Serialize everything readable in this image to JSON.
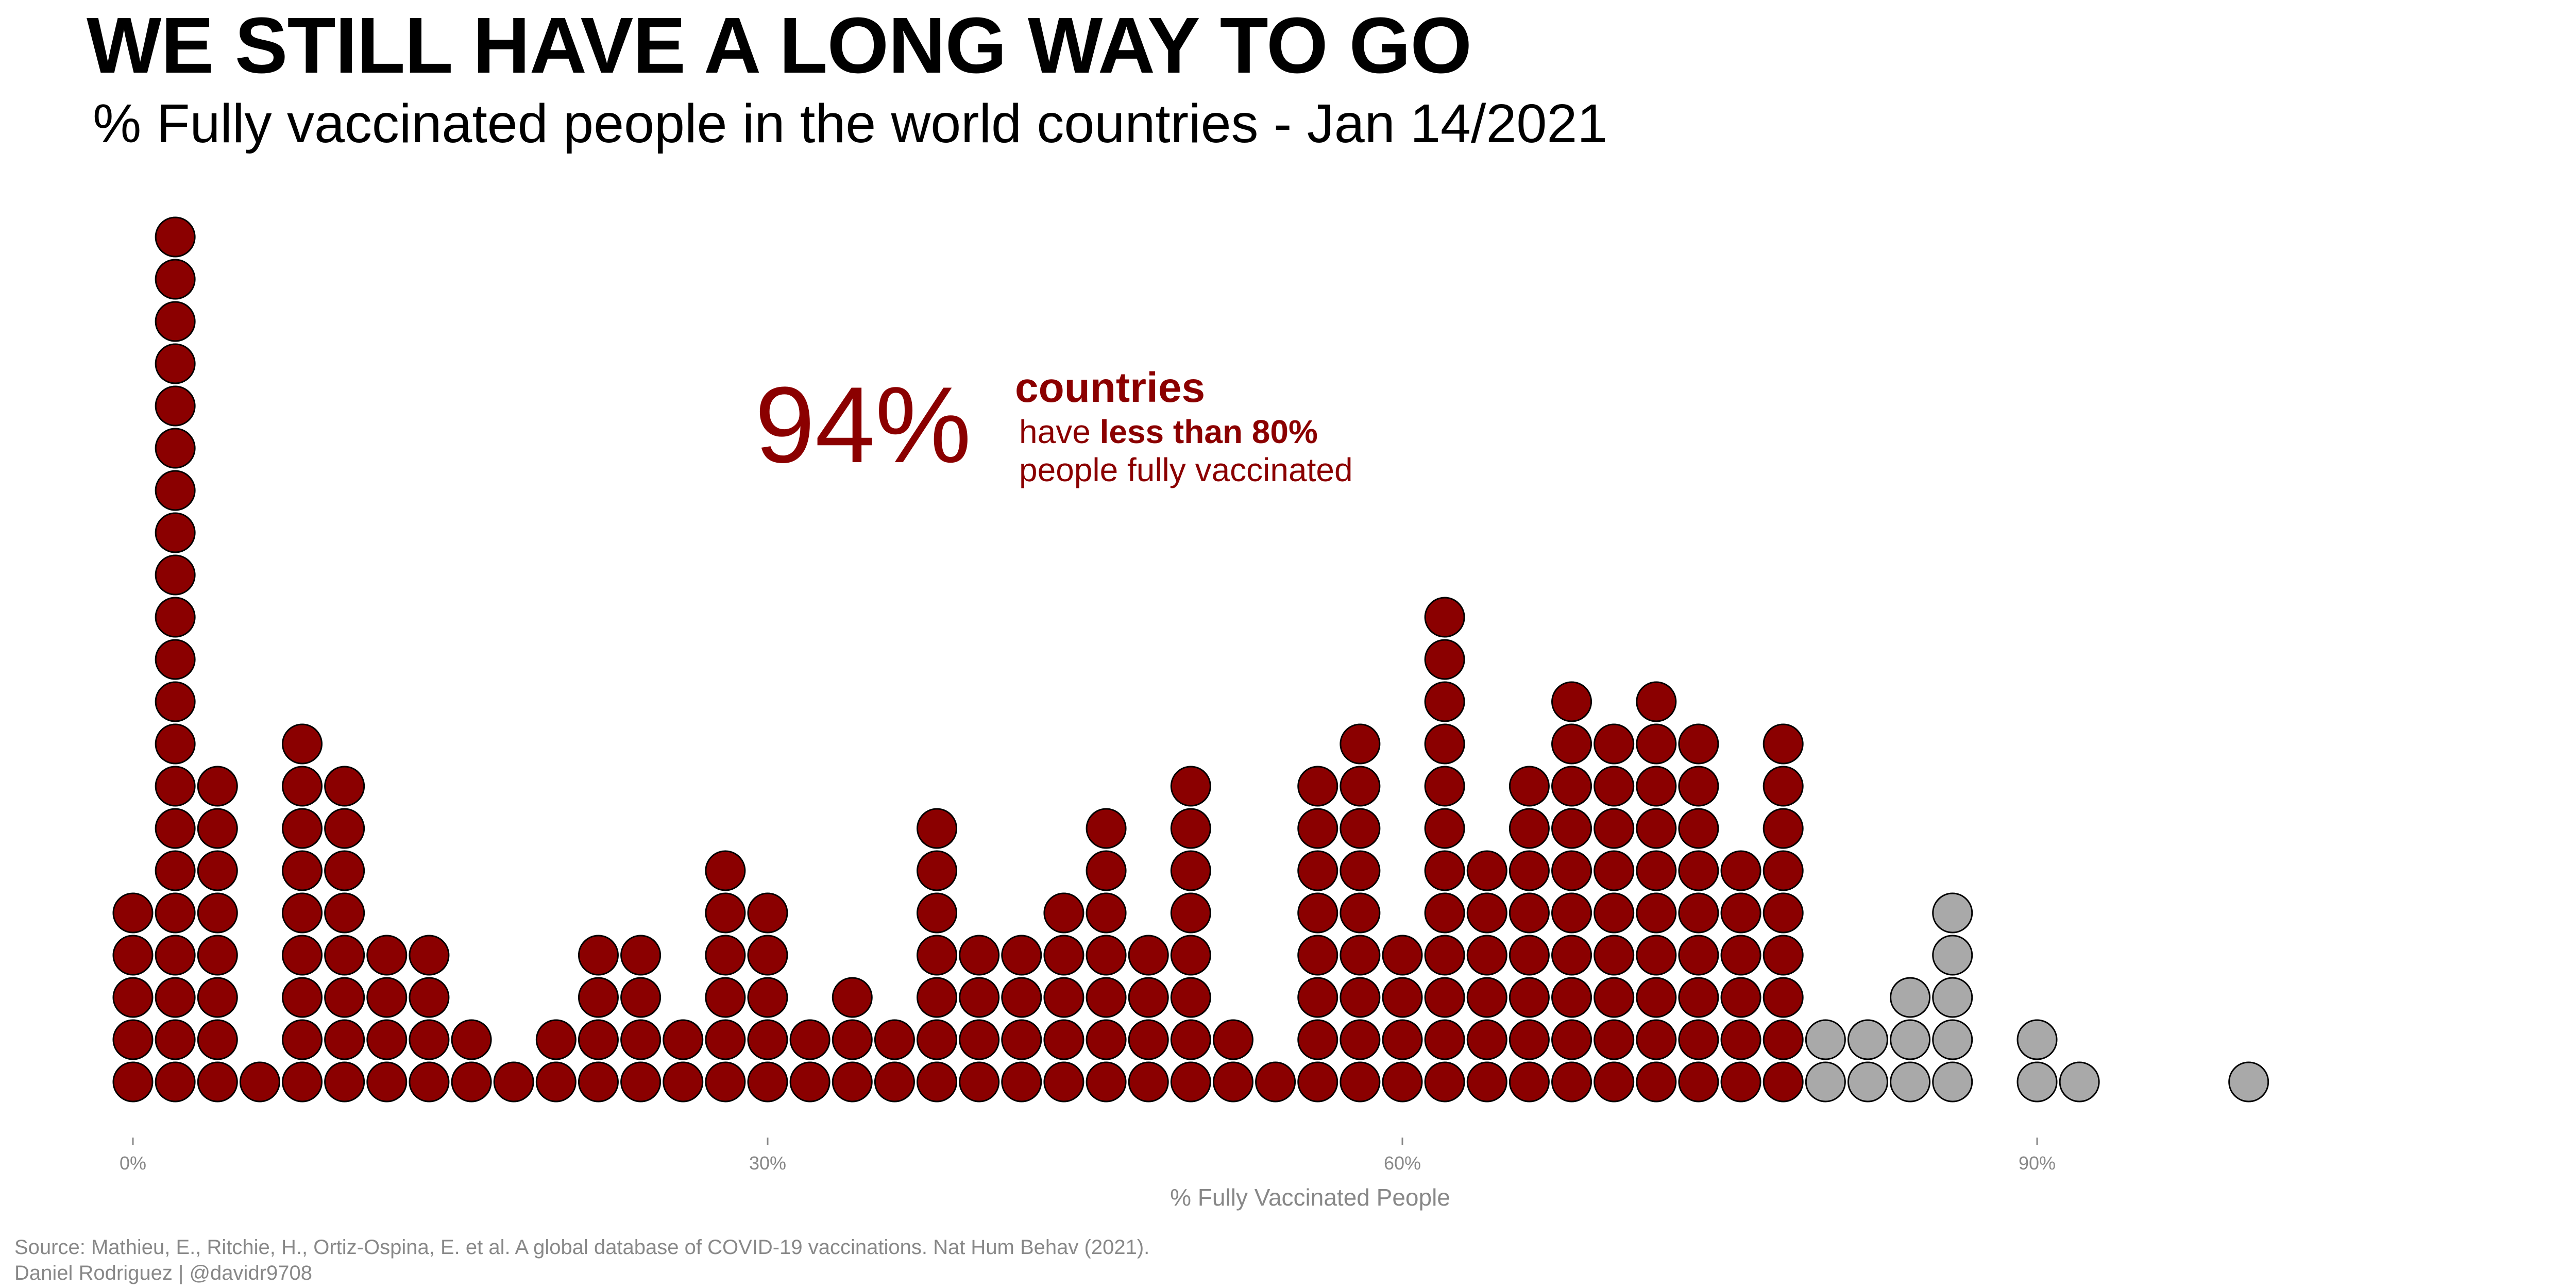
{
  "header": {
    "title": "WE STILL HAVE A LONG WAY TO GO",
    "subtitle": "% Fully vaccinated people in the world countries - Jan 14/2021"
  },
  "callout": {
    "big": "94%",
    "head": "countries",
    "line2_pre": "have ",
    "line2_bold": "less than 80%",
    "line3": " people fully vaccinated"
  },
  "footer": {
    "source": "Source: Mathieu, E., Ritchie, H., Ortiz-Ospina, E. et al. A global database of COVID-19 vaccinations. Nat Hum Behav (2021).",
    "credit": "Daniel Rodriguez | @davidr9708"
  },
  "colors": {
    "below_threshold": "#8B0000",
    "above_threshold": "#A9A9A9",
    "outline": "#000000",
    "axis_text": "#888888"
  },
  "chart_data": {
    "type": "dotplot",
    "xlabel": "% Fully Vaccinated People",
    "ylabel": "",
    "xlim": [
      0,
      100
    ],
    "x_ticks": [
      0,
      30,
      60,
      90
    ],
    "x_tick_labels": [
      "0%",
      "30%",
      "60%",
      "90%"
    ],
    "grid": false,
    "threshold": 80,
    "dot_unit": "country",
    "bins": [
      {
        "x": 0,
        "count": 5
      },
      {
        "x": 2,
        "count": 21
      },
      {
        "x": 4,
        "count": 8
      },
      {
        "x": 6,
        "count": 1
      },
      {
        "x": 8,
        "count": 9
      },
      {
        "x": 10,
        "count": 8
      },
      {
        "x": 12,
        "count": 4
      },
      {
        "x": 14,
        "count": 4
      },
      {
        "x": 16,
        "count": 2
      },
      {
        "x": 18,
        "count": 1
      },
      {
        "x": 20,
        "count": 2
      },
      {
        "x": 22,
        "count": 4
      },
      {
        "x": 24,
        "count": 4
      },
      {
        "x": 26,
        "count": 2
      },
      {
        "x": 28,
        "count": 6
      },
      {
        "x": 30,
        "count": 5
      },
      {
        "x": 32,
        "count": 2
      },
      {
        "x": 34,
        "count": 3
      },
      {
        "x": 36,
        "count": 2
      },
      {
        "x": 38,
        "count": 7
      },
      {
        "x": 40,
        "count": 4
      },
      {
        "x": 42,
        "count": 4
      },
      {
        "x": 44,
        "count": 5
      },
      {
        "x": 46,
        "count": 7
      },
      {
        "x": 48,
        "count": 4
      },
      {
        "x": 50,
        "count": 8
      },
      {
        "x": 52,
        "count": 2
      },
      {
        "x": 54,
        "count": 1
      },
      {
        "x": 56,
        "count": 8
      },
      {
        "x": 58,
        "count": 9
      },
      {
        "x": 60,
        "count": 4
      },
      {
        "x": 62,
        "count": 12
      },
      {
        "x": 64,
        "count": 6
      },
      {
        "x": 66,
        "count": 8
      },
      {
        "x": 68,
        "count": 10
      },
      {
        "x": 70,
        "count": 9
      },
      {
        "x": 72,
        "count": 10
      },
      {
        "x": 74,
        "count": 9
      },
      {
        "x": 76,
        "count": 6
      },
      {
        "x": 78,
        "count": 9
      },
      {
        "x": 80,
        "count": 2
      },
      {
        "x": 82,
        "count": 2
      },
      {
        "x": 84,
        "count": 3
      },
      {
        "x": 86,
        "count": 5
      },
      {
        "x": 90,
        "count": 2
      },
      {
        "x": 92,
        "count": 1
      },
      {
        "x": 100,
        "count": 1
      }
    ]
  }
}
